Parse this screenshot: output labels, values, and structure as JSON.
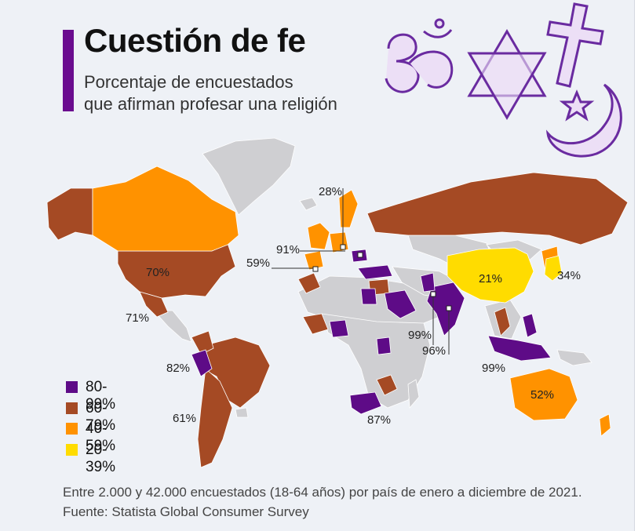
{
  "title": "Cuestión de fe",
  "subtitle_line1": "Porcentaje de encuestados",
  "subtitle_line2": "que afirman profesar una religión",
  "colors": {
    "purple": "#5e0b87",
    "brown": "#a54a24",
    "orange": "#ff9200",
    "yellow": "#ffdc00",
    "gray": "#cfcfd2",
    "accent": "#6a0c8f",
    "symbol_fill": "#e8d9f4",
    "symbol_stroke": "#6a2ba0"
  },
  "icons": [
    "om-icon",
    "star-of-david-icon",
    "cross-icon",
    "crescent-star-icon"
  ],
  "legend": [
    {
      "label": "80-99%",
      "color": "#5e0b87"
    },
    {
      "label": "60-79%",
      "color": "#a54a24"
    },
    {
      "label": "40-59%",
      "color": "#ff9200"
    },
    {
      "label": "20-39%",
      "color": "#ffdc00"
    }
  ],
  "labels": {
    "usa": "70%",
    "mexico": "71%",
    "peru": "82%",
    "argentina": "61%",
    "spain": "59%",
    "france": "91%",
    "sweden": "28%",
    "china": "21%",
    "japan": "34%",
    "india": "99%",
    "india2": "96%",
    "indonesia": "99%",
    "australia": "52%",
    "south_africa": "87%"
  },
  "note_line1": "Entre 2.000 y 42.000 encuestados (18-64 años) por país de enero a diciembre de 2021.",
  "note_line2": "Fuente: Statista Global Consumer Survey"
}
